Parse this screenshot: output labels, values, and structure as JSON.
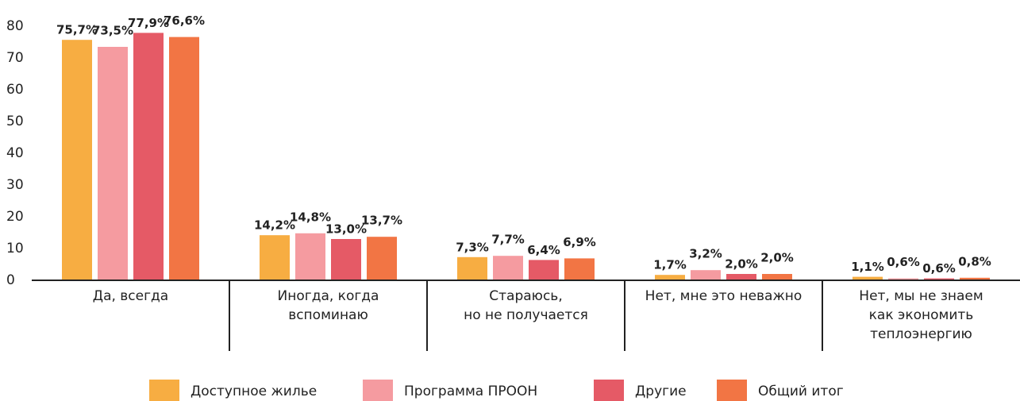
{
  "chart_data": {
    "type": "bar",
    "categories": [
      "Да, всегда",
      "Иногда, когда\nвспоминаю",
      "Стараюсь,\nно не получается",
      "Нет, мне это неважно",
      "Нет, мы не знаем\nкак экономить\nтеплоэнергию"
    ],
    "series": [
      {
        "name": "Доступное жилье",
        "color": "#f7ad42",
        "values": [
          75.7,
          14.2,
          7.3,
          1.7,
          1.1
        ],
        "value_labels": [
          "75,7%",
          "14,2%",
          "7,3%",
          "1,7%",
          "1,1%"
        ]
      },
      {
        "name": "Программа ПРООН",
        "color": "#f59ba0",
        "values": [
          73.5,
          14.8,
          7.7,
          3.2,
          0.6
        ],
        "value_labels": [
          "73,5%",
          "14,8%",
          "7,7%",
          "3,2%",
          "0,6%"
        ]
      },
      {
        "name": "Другие",
        "color": "#e55a66",
        "values": [
          77.9,
          13.0,
          6.4,
          2.0,
          0.6
        ],
        "value_labels": [
          "77,9%",
          "13,0%",
          "6,4%",
          "2,0%",
          "0,6%"
        ]
      },
      {
        "name": "Общий итог",
        "color": "#f27544",
        "values": [
          76.6,
          13.7,
          6.9,
          2.0,
          0.8
        ],
        "value_labels": [
          "76,6%",
          "13,7%",
          "6,9%",
          "2,0%",
          "0,8%"
        ]
      }
    ],
    "ylim": [
      0,
      80
    ],
    "yticks": [
      0,
      10,
      20,
      30,
      40,
      50,
      60,
      70,
      80
    ],
    "grid": false,
    "legend": "bottom"
  }
}
